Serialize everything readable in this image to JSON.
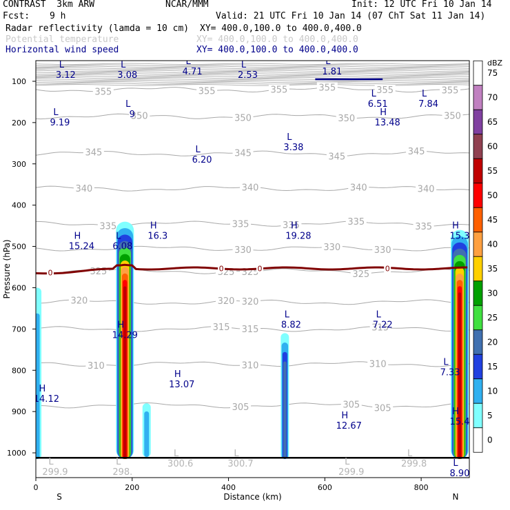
{
  "header": {
    "model": "CONTRAST  3km ARW",
    "org": "NCAR/MMM",
    "init": "Init: 12 UTC Fri 10 Jan 14",
    "fcst_label": "Fcst:",
    "fcst_value": "9 h",
    "valid": "Valid: 21 UTC Fri 10 Jan 14 (07 ChT Sat 11 Jan 14)",
    "fields": [
      {
        "name": "Radar reflectivity (lamda = 10 cm)",
        "xy": "XY= 400.0,100.0 to 400.0,400.0",
        "color": "#000000"
      },
      {
        "name": "Potential temperature",
        "xy": "XY= 400.0,100.0 to 400.0,400.0",
        "color": "#c8c8c8"
      },
      {
        "name": "Horizontal wind speed",
        "xy": "XY= 400.0,100.0 to 400.0,400.0",
        "color": "#00008b"
      }
    ]
  },
  "chart_data": {
    "type": "heatmap",
    "xlabel": "Distance (km)",
    "ylabel": "Pressure (hPa)",
    "xlim": [
      0,
      900
    ],
    "ylim": [
      1060,
      50
    ],
    "xticks": [
      0,
      200,
      400,
      600,
      800
    ],
    "yticks": [
      100,
      200,
      300,
      400,
      500,
      600,
      700,
      800,
      900,
      1000
    ],
    "x_end_labels": {
      "left": "S",
      "right": "N"
    },
    "colorbar": {
      "unit": "dBZ",
      "levels": [
        75,
        70,
        65,
        60,
        55,
        50,
        45,
        40,
        35,
        30,
        25,
        20,
        15,
        10,
        5,
        0
      ],
      "colors": [
        "#ffffff",
        "#c080c0",
        "#8040a0",
        "#904050",
        "#c00000",
        "#ff0000",
        "#ff6000",
        "#ffa040",
        "#ffd000",
        "#00a000",
        "#40e040",
        "#4070b0",
        "#2040e0",
        "#30b0f0",
        "#80ffff",
        "#ffffff"
      ]
    },
    "theta_contours": [
      {
        "label": "355",
        "p": 120,
        "label_x": [
          140,
          355,
          505,
          605,
          725,
          860
        ]
      },
      {
        "label": "350",
        "p": 185,
        "label_x": [
          215,
          430,
          645,
          865
        ]
      },
      {
        "label": "345",
        "p": 275,
        "label_x": [
          120,
          430,
          625,
          790
        ]
      },
      {
        "label": "340",
        "p": 360,
        "label_x": [
          100,
          445,
          670,
          810
        ]
      },
      {
        "label": "335",
        "p": 445,
        "label_x": [
          150,
          425,
          530,
          665,
          805
        ]
      },
      {
        "label": "330",
        "p": 505,
        "label_x": [
          430,
          615,
          720
        ]
      },
      {
        "label": "325",
        "p": 560,
        "label_x": [
          130,
          395,
          445,
          675
        ]
      },
      {
        "label": "320",
        "p": 635,
        "label_x": [
          90,
          395,
          445
        ]
      },
      {
        "label": "315",
        "p": 700,
        "label_x": [
          385,
          445,
          715
        ]
      },
      {
        "label": "310",
        "p": 785,
        "label_x": [
          125,
          445,
          710
        ]
      },
      {
        "label": "305",
        "p": 885,
        "label_x": [
          425,
          655,
          720
        ]
      }
    ],
    "freezing_level": {
      "label": "0",
      "p": 555,
      "label_x": [
        30,
        385,
        465,
        730
      ]
    },
    "wind_extrema": [
      {
        "type": "L",
        "value": "3.12",
        "x": 62,
        "p": 80
      },
      {
        "type": "L",
        "value": "3.08",
        "x": 190,
        "p": 80
      },
      {
        "type": "L",
        "value": "4.71",
        "x": 325,
        "p": 72
      },
      {
        "type": "L",
        "value": "2.53",
        "x": 440,
        "p": 80
      },
      {
        "type": "L",
        "value": "1.81",
        "x": 615,
        "p": 72
      },
      {
        "type": "L",
        "value": "6.51",
        "x": 710,
        "p": 150
      },
      {
        "type": "L",
        "value": "7.84",
        "x": 815,
        "p": 150
      },
      {
        "type": "L",
        "value": "9.19",
        "x": 50,
        "p": 195
      },
      {
        "type": "L",
        "value": "9",
        "x": 200,
        "p": 175
      },
      {
        "type": "L",
        "value": "6.20",
        "x": 345,
        "p": 285
      },
      {
        "type": "L",
        "value": "3.38",
        "x": 535,
        "p": 255
      },
      {
        "type": "H",
        "value": "13.48",
        "x": 730,
        "p": 195
      },
      {
        "type": "H",
        "value": "15.24",
        "x": 95,
        "p": 495
      },
      {
        "type": "L",
        "value": "6.08",
        "x": 180,
        "p": 495
      },
      {
        "type": "H",
        "value": "16.3",
        "x": 253,
        "p": 470
      },
      {
        "type": "H",
        "value": "19.28",
        "x": 545,
        "p": 470
      },
      {
        "type": "H",
        "value": "15.3",
        "x": 880,
        "p": 470
      },
      {
        "type": "L",
        "value": "8.82",
        "x": 530,
        "p": 685
      },
      {
        "type": "L",
        "value": "7.22",
        "x": 720,
        "p": 685
      },
      {
        "type": "H",
        "value": "14.29",
        "x": 185,
        "p": 710
      },
      {
        "type": "L",
        "value": "7.33",
        "x": 860,
        "p": 800
      },
      {
        "type": "H",
        "value": "13.07",
        "x": 303,
        "p": 830
      },
      {
        "type": "H",
        "value": "14.12",
        "x": 22,
        "p": 865
      },
      {
        "type": "H",
        "value": "12.67",
        "x": 650,
        "p": 930
      },
      {
        "type": "H",
        "value": "15.4",
        "x": 880,
        "p": 920
      },
      {
        "type": "L",
        "value": "8.90",
        "x": 880,
        "p": 1045
      }
    ],
    "theta_extrema": [
      {
        "type": "L",
        "value": "299.9",
        "x": 40,
        "p": 1045
      },
      {
        "type": "L",
        "value": "300.6",
        "x": 300,
        "p": 1025
      },
      {
        "type": "L",
        "value": "300.7",
        "x": 425,
        "p": 1025
      },
      {
        "type": "L",
        "value": "299.9",
        "x": 655,
        "p": 1045
      },
      {
        "type": "L",
        "value": "299.8",
        "x": 785,
        "p": 1025
      },
      {
        "type": "L",
        "value": "298.",
        "x": 180,
        "p": 1045
      }
    ],
    "reflectivity_cells": [
      {
        "x_center": 185,
        "p_top": 440,
        "p_bottom": 1015,
        "max_dbz": 55
      },
      {
        "x_center": 230,
        "p_top": 880,
        "p_bottom": 1010,
        "max_dbz": 10
      },
      {
        "x_center": 517,
        "p_top": 710,
        "p_bottom": 1015,
        "max_dbz": 20
      },
      {
        "x_center": 880,
        "p_top": 460,
        "p_bottom": 1015,
        "max_dbz": 55
      },
      {
        "x_center": 3,
        "p_top": 600,
        "p_bottom": 1015,
        "max_dbz": 10
      }
    ],
    "surface_p": 1012
  }
}
